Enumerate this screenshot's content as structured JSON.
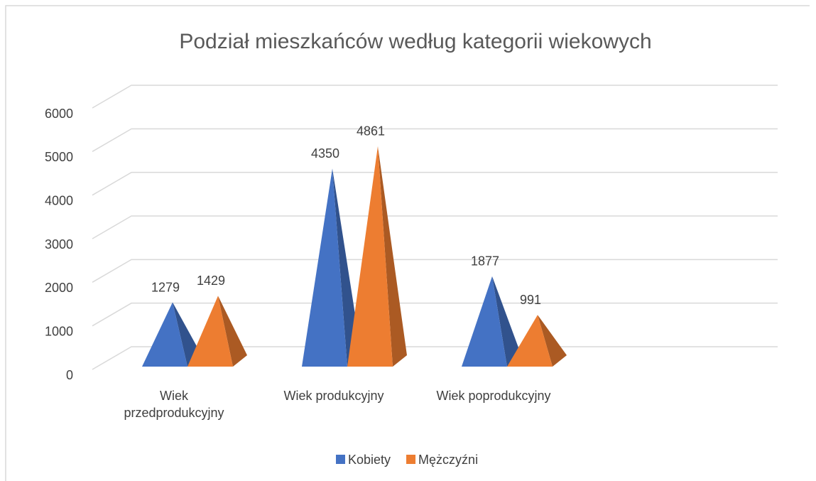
{
  "chart_data": {
    "type": "pyramid3d",
    "title": "Podział mieszkańców według kategorii wiekowych",
    "categories": [
      "Wiek przedprodukcyjny",
      "Wiek produkcyjny",
      "Wiek poprodukcyjny"
    ],
    "series": [
      {
        "name": "Kobiety",
        "color": "#4472c4",
        "values": [
          1279,
          4350,
          1877
        ]
      },
      {
        "name": "Mężczyźni",
        "color": "#ed7d31",
        "values": [
          1429,
          4861,
          991
        ]
      }
    ],
    "ylim": [
      0,
      6000
    ],
    "yticks": [
      0,
      1000,
      2000,
      3000,
      4000,
      5000,
      6000
    ],
    "grid": true,
    "legend": "bottom"
  }
}
